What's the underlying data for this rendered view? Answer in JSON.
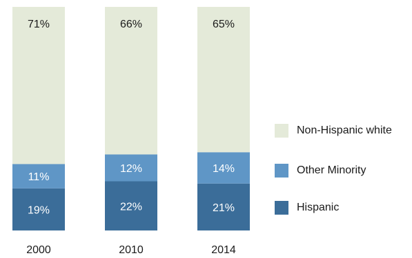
{
  "chart_data": {
    "type": "bar",
    "stacked": true,
    "categories": [
      "2000",
      "2010",
      "2014"
    ],
    "series": [
      {
        "name": "Hispanic",
        "values": [
          19,
          22,
          21
        ],
        "labels": [
          "19%",
          "22%",
          "21%"
        ],
        "color": "#3b6d99"
      },
      {
        "name": "Other Minority",
        "values": [
          11,
          12,
          14
        ],
        "labels": [
          "11%",
          "12%",
          "14%"
        ],
        "color": "#5f96c6"
      },
      {
        "name": "Non-Hispanic white",
        "values": [
          71,
          66,
          65
        ],
        "labels": [
          "71%",
          "66%",
          "65%"
        ],
        "color": "#e4ead9"
      }
    ],
    "ylim": [
      0,
      100
    ],
    "grid": false,
    "legend_position": "right"
  },
  "legend": {
    "items": [
      {
        "label": "Non-Hispanic white",
        "color": "#e4ead9"
      },
      {
        "label": "Other Minority",
        "color": "#5f96c6"
      },
      {
        "label": "Hispanic",
        "color": "#3b6d99"
      }
    ]
  }
}
